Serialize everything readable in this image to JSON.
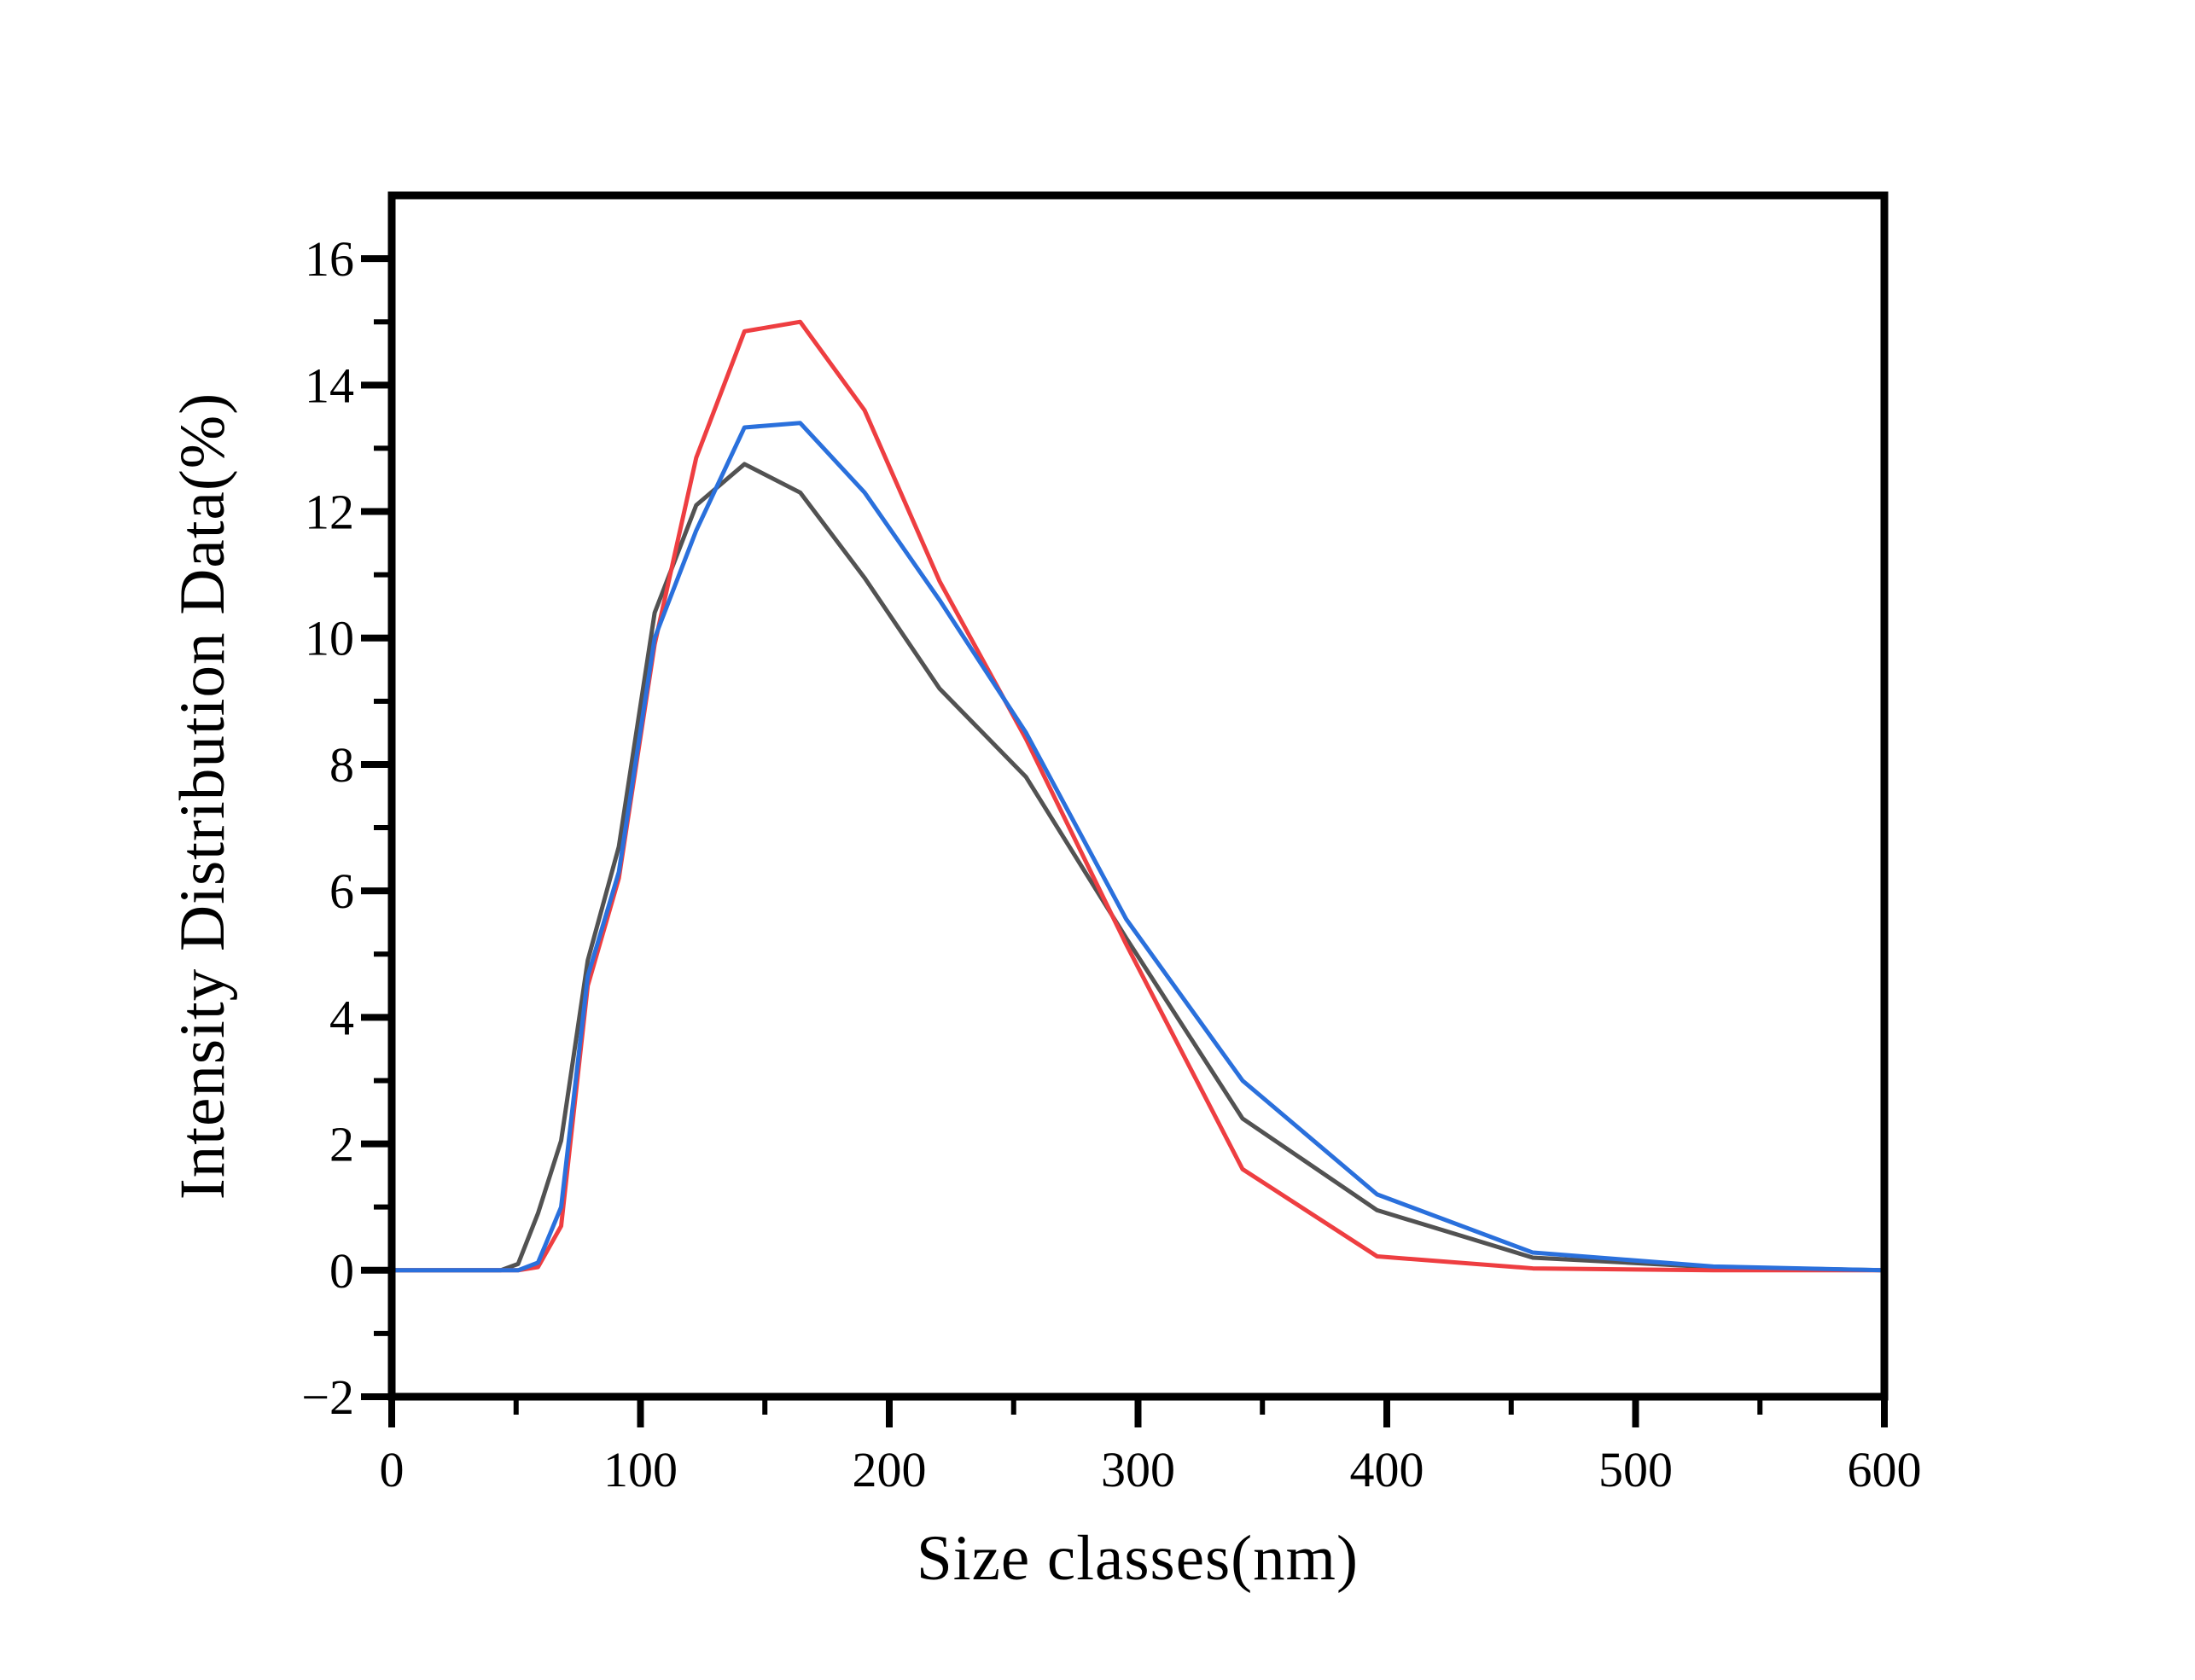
{
  "chart_data": {
    "type": "line",
    "title": "",
    "xlabel": "Size classes(nm)",
    "ylabel": "Intensity Distribution Data(%)",
    "xlim": [
      0,
      600
    ],
    "ylim": [
      -2,
      17
    ],
    "grid": false,
    "legend_position": "none",
    "background_color": "#ffffff",
    "axis_color": "#000000",
    "x_major_ticks": [
      0,
      100,
      200,
      300,
      400,
      500,
      600
    ],
    "x_tick_labels": [
      "0",
      "100",
      "200",
      "300",
      "400",
      "500",
      "600"
    ],
    "x_minor_ticks": [
      50,
      150,
      250,
      350,
      450,
      550
    ],
    "y_major_ticks": [
      -2,
      0,
      2,
      4,
      6,
      8,
      10,
      12,
      14,
      16
    ],
    "y_tick_labels": [
      "−2",
      "0",
      "2",
      "4",
      "6",
      "8",
      "10",
      "12",
      "14",
      "16"
    ],
    "y_minor_ticks": [
      -1,
      1,
      3,
      5,
      7,
      9,
      11,
      13,
      15
    ],
    "x": [
      0,
      43.8,
      50.8,
      58.8,
      68.1,
      78.8,
      91.3,
      105.7,
      122.4,
      141.8,
      164.2,
      190.1,
      220.2,
      255.0,
      295.3,
      342.0,
      396.1,
      458.7,
      531.2,
      600
    ],
    "series": [
      {
        "name": "black-line",
        "color": "#525252",
        "values": [
          0,
          0,
          0.1,
          0.9,
          2.05,
          4.9,
          6.7,
          10.4,
          12.1,
          12.75,
          12.3,
          10.95,
          9.2,
          7.8,
          5.25,
          2.4,
          0.95,
          0.2,
          0.05,
          0
        ]
      },
      {
        "name": "red-line",
        "color": "#ee3e41",
        "values": [
          0,
          0,
          0,
          0.05,
          0.7,
          4.5,
          6.2,
          9.9,
          12.85,
          14.85,
          15.0,
          13.6,
          10.9,
          8.4,
          5.15,
          1.6,
          0.22,
          0.03,
          0,
          0
        ]
      },
      {
        "name": "blue-line",
        "color": "#2a70dc",
        "values": [
          0,
          0,
          0,
          0.12,
          1.0,
          4.65,
          6.3,
          10.0,
          11.7,
          13.33,
          13.4,
          12.3,
          10.6,
          8.5,
          5.55,
          3.0,
          1.2,
          0.28,
          0.06,
          0
        ]
      }
    ]
  }
}
